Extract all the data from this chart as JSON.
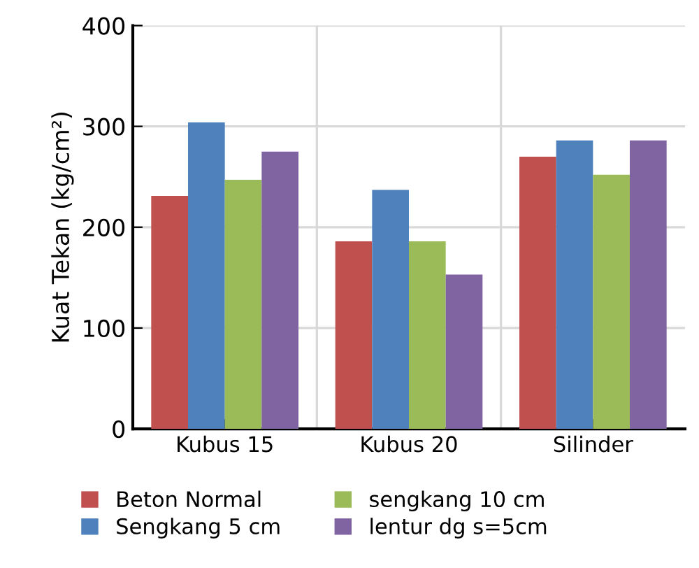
{
  "chart_data": {
    "type": "bar",
    "ylabel": "Kuat Tekan (kg/cm²)",
    "categories": [
      "Kubus 15",
      "Kubus 20",
      "Silinder"
    ],
    "series": [
      {
        "name": "Beton Normal",
        "color": "#c0504d",
        "values": [
          231,
          186,
          270
        ]
      },
      {
        "name": "Sengkang 5 cm",
        "color": "#4f81bd",
        "values": [
          304,
          237,
          286
        ]
      },
      {
        "name": "sengkang 10 cm",
        "color": "#9bbb59",
        "values": [
          247,
          186,
          252
        ]
      },
      {
        "name": "lentur dg s=5cm",
        "color": "#8064a2",
        "values": [
          275,
          153,
          286
        ]
      }
    ],
    "ylim": [
      0,
      400
    ],
    "yticks": [
      0,
      100,
      200,
      300,
      400
    ],
    "grid": true,
    "legend": "bottom"
  }
}
